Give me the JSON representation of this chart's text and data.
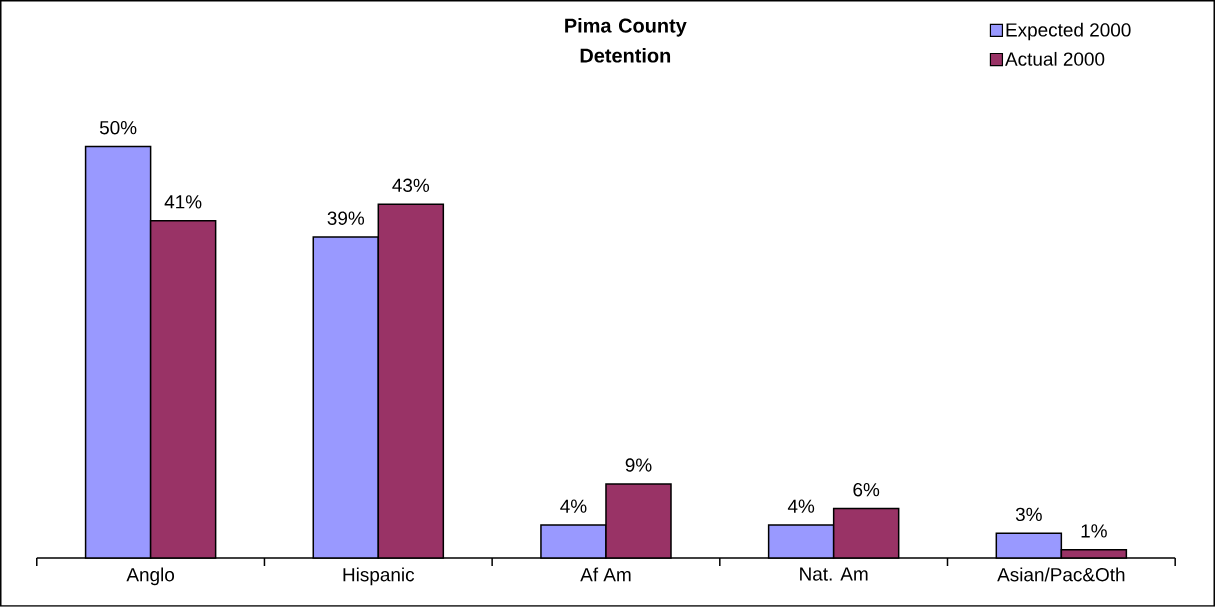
{
  "chart_data": {
    "type": "bar",
    "title": "Pima County Detention",
    "categories": [
      "Anglo",
      "Hispanic",
      "Af Am",
      "Nat. Am",
      "Asian/Pac&Oth"
    ],
    "series": [
      {
        "name": "Expected 2000",
        "color": "#9999ff",
        "values": [
          50,
          39,
          4,
          4,
          3
        ],
        "value_labels": [
          "50%",
          "39%",
          "4%",
          "4%",
          "3%"
        ]
      },
      {
        "name": "Actual 2000",
        "color": "#993366",
        "values": [
          41,
          43,
          9,
          6,
          1
        ],
        "value_labels": [
          "41%",
          "43%",
          "9%",
          "6%",
          "1%"
        ]
      }
    ],
    "legend": "top right"
  }
}
